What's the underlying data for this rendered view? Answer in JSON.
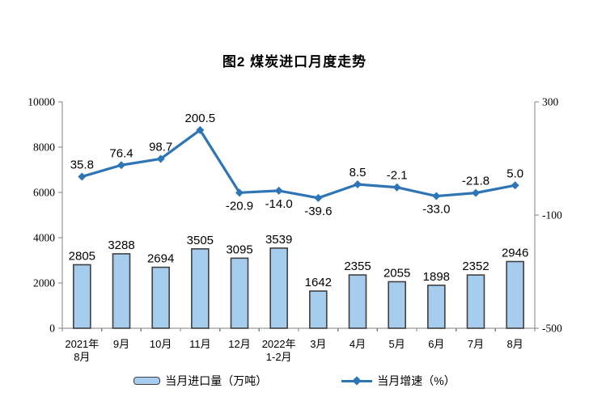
{
  "chart_data": {
    "type": "bar+line",
    "title": "图2 煤炭进口月度走势",
    "categories": [
      [
        "2021年",
        "8月"
      ],
      [
        "9月"
      ],
      [
        "10月"
      ],
      [
        "11月"
      ],
      [
        "12月"
      ],
      [
        "2022年",
        "1-2月"
      ],
      [
        "3月"
      ],
      [
        "4月"
      ],
      [
        "5月"
      ],
      [
        "6月"
      ],
      [
        "7月"
      ],
      [
        "8月"
      ]
    ],
    "series": [
      {
        "name": "当月进口量（万吨）",
        "type": "bar",
        "axis": "left",
        "values": [
          2805,
          3288,
          2694,
          3505,
          3095,
          3539,
          1642,
          2355,
          2055,
          1898,
          2352,
          2946
        ],
        "labels": [
          "2805",
          "3288",
          "2694",
          "3505",
          "3095",
          "3539",
          "1642",
          "2355",
          "2055",
          "1898",
          "2352",
          "2946"
        ]
      },
      {
        "name": "当月增速（%）",
        "type": "line",
        "axis": "right",
        "values": [
          35.8,
          76.4,
          98.7,
          200.5,
          -20.9,
          -14.0,
          -39.6,
          8.5,
          -2.1,
          -33.0,
          -21.8,
          5.0
        ],
        "labels": [
          "35.8",
          "76.4",
          "98.7",
          "200.5",
          "-20.9",
          "-14.0",
          "-39.6",
          "8.5",
          "-2.1",
          "-33.0",
          "-21.8",
          "5.0"
        ],
        "label_side": [
          "above",
          "above",
          "above",
          "above",
          "below",
          "below",
          "below",
          "above",
          "above",
          "below",
          "above",
          "above"
        ]
      }
    ],
    "left_axis": {
      "min": 0,
      "max": 10000,
      "tick_values": [
        0,
        2000,
        4000,
        6000,
        8000,
        10000
      ],
      "tick_labels": [
        "0",
        "2000",
        "4000",
        "6000",
        "8000",
        "10000"
      ]
    },
    "right_axis": {
      "min": -500,
      "max": 300,
      "tick_values": [
        -500,
        -100,
        300
      ],
      "tick_labels": [
        "-500",
        "-100",
        "300"
      ]
    },
    "legend_position": "bottom",
    "grid": false,
    "colors": {
      "background": "#FFFFFF",
      "bar_fill": "#A6CDEE",
      "bar_border": "#404040",
      "line": "#2E75B6",
      "axis": "#808080",
      "text": "#000000"
    }
  }
}
